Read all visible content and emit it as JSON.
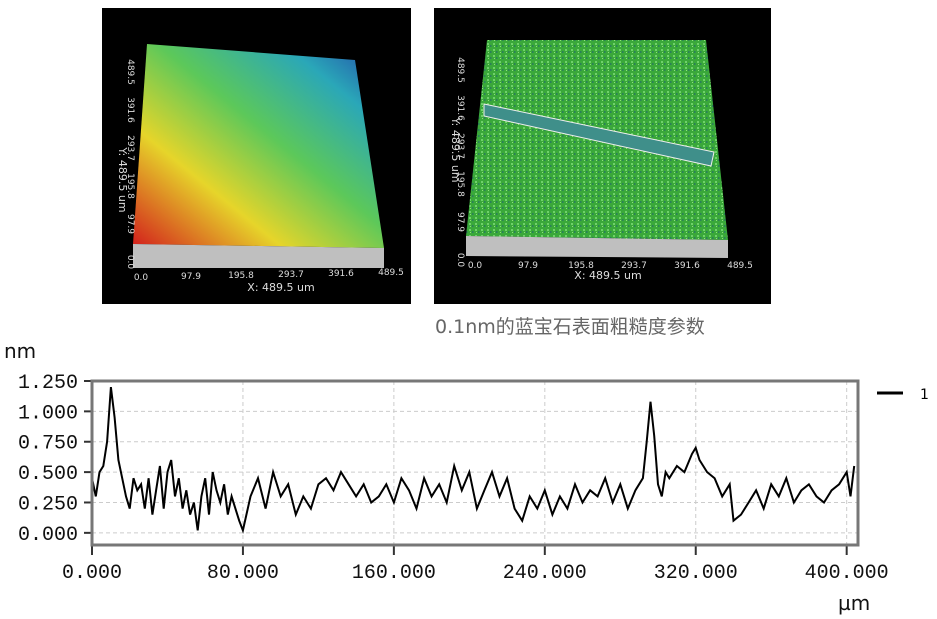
{
  "images": [
    {
      "x_ticks": [
        "0.0",
        "97.9",
        "195.8",
        "293.7",
        "391.6",
        "489.5"
      ],
      "y_ticks": [
        "0.0",
        "97.9",
        "195.8",
        "293.7",
        "391.6",
        "489.5"
      ],
      "x_label": "X: 489.5 um",
      "y_label": "Y: 489.5 um"
    },
    {
      "x_ticks": [
        "0.0",
        "97.9",
        "195.8",
        "293.7",
        "391.6",
        "489.5"
      ],
      "y_ticks": [
        "0.0",
        "97.9",
        "195.8",
        "293.7",
        "391.6",
        "489.5"
      ],
      "x_label": "X: 489.5 um",
      "y_label": "Y: 489.5 um"
    }
  ],
  "caption": "0.1nm的蓝宝石表面粗糙度参数",
  "chart_data": {
    "type": "line",
    "y_label": "nm",
    "x_label": "µm",
    "x": [
      0,
      2,
      4,
      6,
      8,
      10,
      12,
      14,
      16,
      18,
      20,
      22,
      24,
      26,
      28,
      30,
      32,
      34,
      36,
      38,
      40,
      42,
      44,
      46,
      48,
      50,
      52,
      54,
      56,
      58,
      60,
      62,
      64,
      66,
      68,
      70,
      72,
      74,
      76,
      78,
      80,
      84,
      88,
      92,
      96,
      100,
      104,
      108,
      112,
      116,
      120,
      124,
      128,
      132,
      136,
      140,
      144,
      148,
      152,
      156,
      160,
      164,
      168,
      172,
      176,
      180,
      184,
      188,
      192,
      196,
      200,
      204,
      208,
      212,
      216,
      220,
      224,
      228,
      232,
      236,
      240,
      244,
      248,
      252,
      256,
      260,
      264,
      268,
      272,
      276,
      280,
      284,
      288,
      292,
      294,
      296,
      298,
      300,
      302,
      304,
      306,
      310,
      314,
      318,
      320,
      322,
      326,
      330,
      334,
      338,
      340,
      344,
      348,
      352,
      356,
      360,
      364,
      368,
      372,
      376,
      380,
      384,
      388,
      392,
      396,
      400,
      402,
      404
    ],
    "series": [
      {
        "name": "1",
        "color": "#000000",
        "values": [
          0.45,
          0.3,
          0.5,
          0.55,
          0.75,
          1.2,
          0.95,
          0.6,
          0.45,
          0.3,
          0.2,
          0.45,
          0.35,
          0.4,
          0.2,
          0.45,
          0.15,
          0.35,
          0.55,
          0.2,
          0.5,
          0.6,
          0.3,
          0.45,
          0.2,
          0.35,
          0.15,
          0.25,
          0.02,
          0.3,
          0.45,
          0.15,
          0.5,
          0.35,
          0.25,
          0.4,
          0.15,
          0.3,
          0.2,
          0.1,
          0.02,
          0.3,
          0.45,
          0.2,
          0.5,
          0.3,
          0.4,
          0.15,
          0.3,
          0.2,
          0.4,
          0.45,
          0.35,
          0.5,
          0.4,
          0.3,
          0.4,
          0.25,
          0.3,
          0.4,
          0.25,
          0.45,
          0.35,
          0.2,
          0.45,
          0.3,
          0.4,
          0.25,
          0.55,
          0.35,
          0.5,
          0.2,
          0.35,
          0.5,
          0.3,
          0.45,
          0.2,
          0.1,
          0.3,
          0.2,
          0.35,
          0.15,
          0.3,
          0.2,
          0.4,
          0.25,
          0.35,
          0.3,
          0.45,
          0.25,
          0.4,
          0.2,
          0.35,
          0.45,
          0.75,
          1.08,
          0.8,
          0.4,
          0.3,
          0.5,
          0.45,
          0.55,
          0.5,
          0.65,
          0.7,
          0.6,
          0.5,
          0.45,
          0.3,
          0.4,
          0.1,
          0.15,
          0.25,
          0.35,
          0.2,
          0.4,
          0.3,
          0.45,
          0.25,
          0.35,
          0.4,
          0.3,
          0.25,
          0.35,
          0.4,
          0.5,
          0.3,
          0.55
        ]
      }
    ],
    "xlim": [
      0,
      406
    ],
    "ylim": [
      -0.1,
      1.25
    ],
    "xticks": [
      {
        "value": 0,
        "label": "0.000"
      },
      {
        "value": 80,
        "label": "80.000"
      },
      {
        "value": 160,
        "label": "160.000"
      },
      {
        "value": 240,
        "label": "240.000"
      },
      {
        "value": 320,
        "label": "320.000"
      },
      {
        "value": 400,
        "label": "400.000"
      }
    ],
    "yticks": [
      {
        "value": 0,
        "label": "0.000"
      },
      {
        "value": 0.25,
        "label": "0.250"
      },
      {
        "value": 0.5,
        "label": "0.500"
      },
      {
        "value": 0.75,
        "label": "0.750"
      },
      {
        "value": 1,
        "label": "1.000"
      },
      {
        "value": 1.25,
        "label": "1.250"
      }
    ],
    "grid": true
  }
}
